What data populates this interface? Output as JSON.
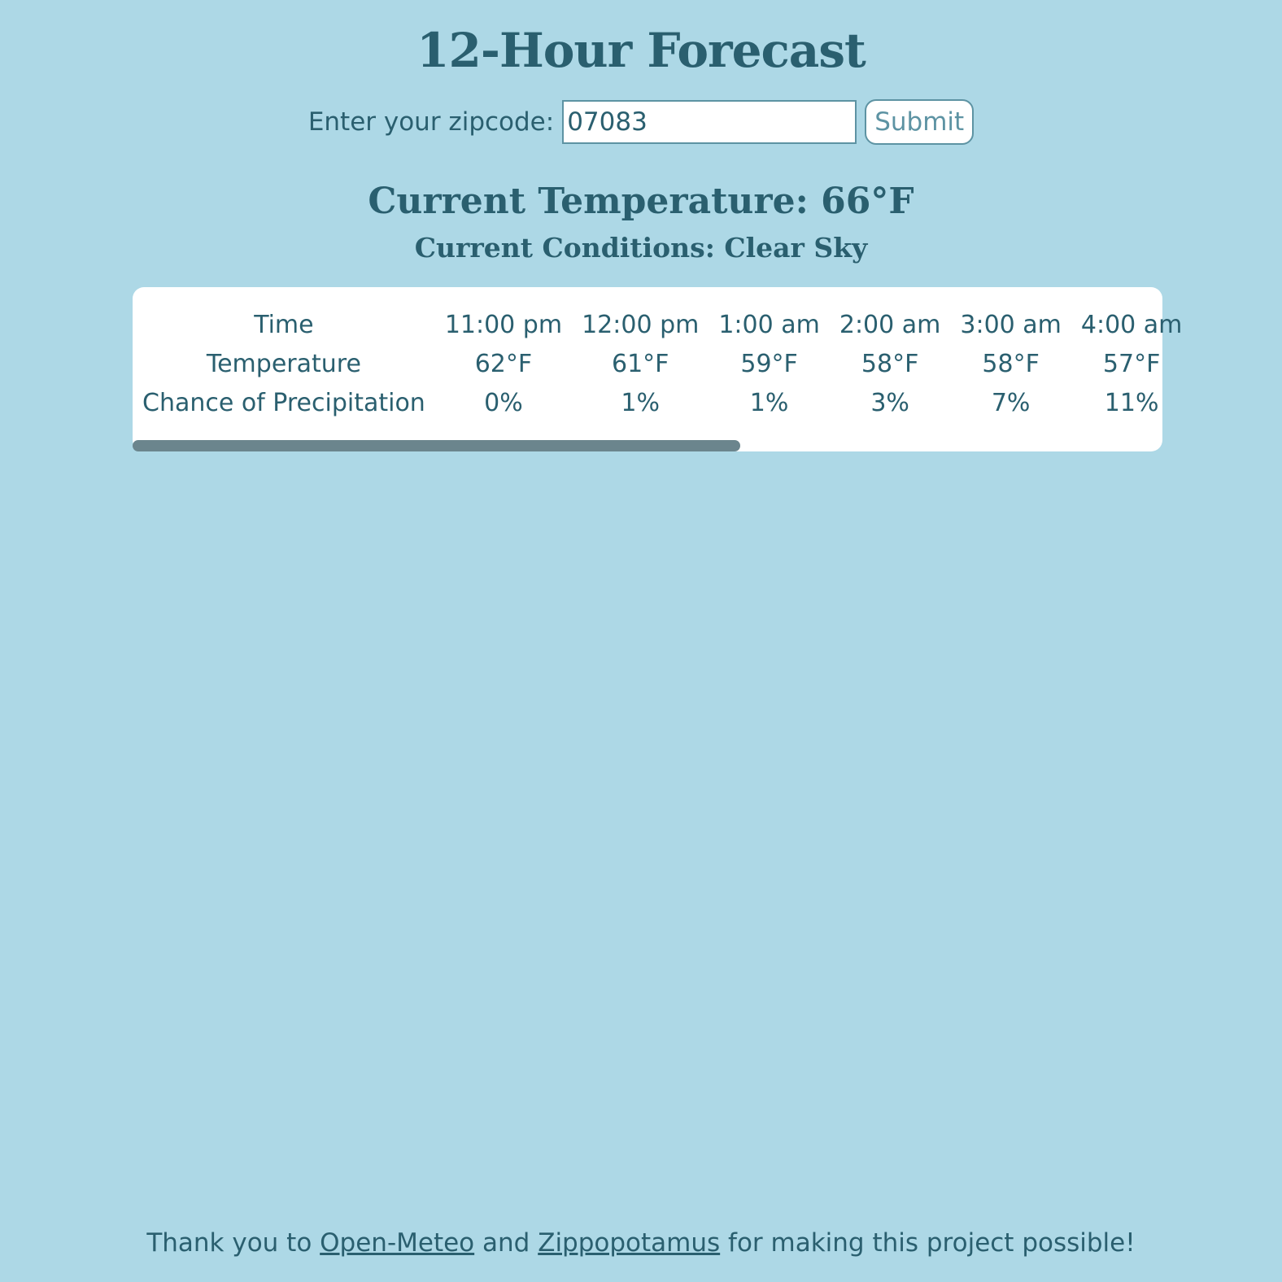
{
  "header": {
    "title": "12-Hour Forecast"
  },
  "zip_form": {
    "label": "Enter your zipcode:",
    "value": "07083",
    "submit_label": "Submit"
  },
  "current": {
    "temperature_text": "Current Temperature: 66°F",
    "conditions_text": "Current Conditions: Clear Sky"
  },
  "forecast": {
    "row_labels": {
      "time": "Time",
      "temperature": "Temperature",
      "precipitation": "Chance of Precipitation"
    },
    "hours": [
      {
        "time": "11:00 pm",
        "temperature": "62°F",
        "precipitation": "0%"
      },
      {
        "time": "12:00 pm",
        "temperature": "61°F",
        "precipitation": "1%"
      },
      {
        "time": "1:00 am",
        "temperature": "59°F",
        "precipitation": "1%"
      },
      {
        "time": "2:00 am",
        "temperature": "58°F",
        "precipitation": "3%"
      },
      {
        "time": "3:00 am",
        "temperature": "58°F",
        "precipitation": "7%"
      },
      {
        "time": "4:00 am",
        "temperature": "57°F",
        "precipitation": "11%"
      }
    ],
    "scroll_fraction_visible": 0.59
  },
  "footer": {
    "prefix": "Thank you to",
    "link1": "Open-Meteo",
    "middle": "and",
    "link2": "Zippopotamus",
    "suffix": "for making this project possible!"
  },
  "colors": {
    "background": "#add8e6",
    "text": "#2a5f6f",
    "accent": "#5d93a3",
    "scrollbar": "#6b858d"
  }
}
